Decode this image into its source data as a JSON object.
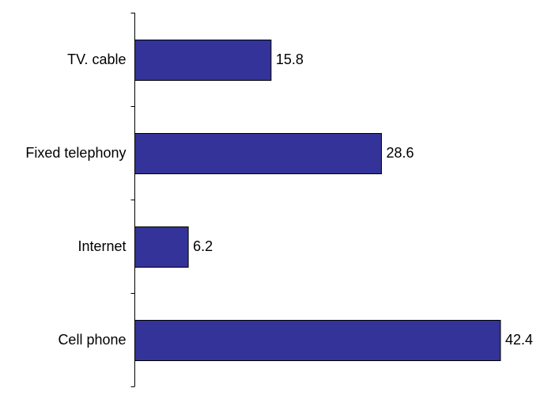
{
  "chart_data": {
    "type": "bar",
    "orientation": "horizontal",
    "categories": [
      "TV. cable",
      "Fixed telephony",
      "Internet",
      "Cell phone"
    ],
    "values": [
      15.8,
      28.6,
      6.2,
      42.4
    ],
    "title": "",
    "xlabel": "",
    "ylabel": "",
    "xlim": [
      0,
      42.4
    ],
    "grid": false,
    "legend": "none",
    "bar_color": "#333399",
    "bar_edge_color": "#000000",
    "data_labels": [
      "15.8",
      "28.6",
      "6.2",
      "42.4"
    ]
  }
}
